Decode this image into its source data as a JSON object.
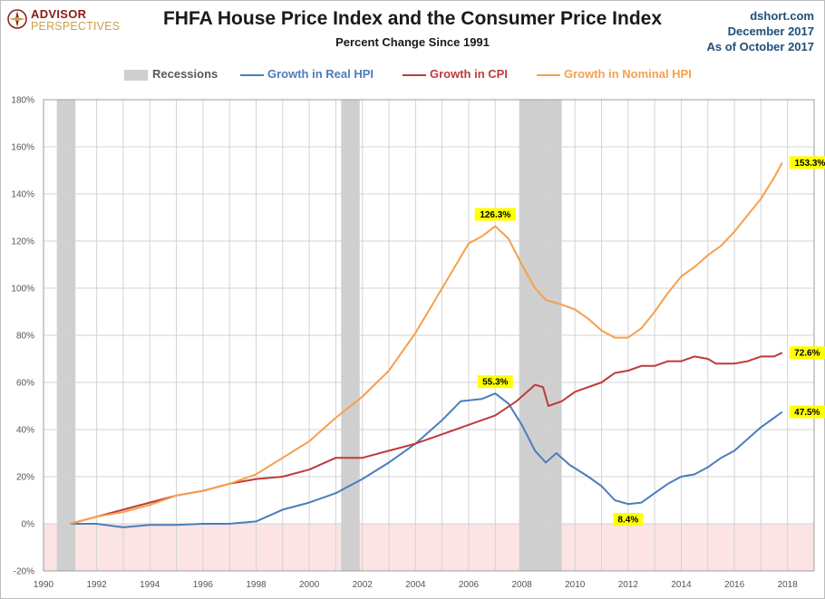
{
  "header": {
    "title": "FHFA House Price Index and the Consumer Price Index",
    "subtitle": "Percent Change Since 1991",
    "source_lines": [
      "dshort.com",
      "December 2017",
      "As of October 2017"
    ]
  },
  "logo": {
    "line1": "ADVISOR",
    "line2": "PERSPECTIVES"
  },
  "legend": {
    "recessions_label": "Recessions",
    "items": [
      {
        "label": "Growth in Real HPI",
        "color": "#4a7ebb"
      },
      {
        "label": "Growth in CPI",
        "color": "#be3b3b"
      },
      {
        "label": "Growth in Nominal HPI",
        "color": "#f5a04e"
      }
    ]
  },
  "colors": {
    "real_hpi": "#4a7ebb",
    "cpi": "#be3b3b",
    "nominal_hpi": "#f5a04e",
    "recession_band": "#cfcfcf",
    "negative_zone": "#fce4e4",
    "callout_bg": "#ffff00",
    "grid": "#d3d3d3"
  },
  "chart_data": {
    "type": "line",
    "title": "FHFA House Price Index and the Consumer Price Index",
    "subtitle": "Percent Change Since 1991",
    "xlim": [
      1990,
      2019
    ],
    "ylim": [
      -20,
      180
    ],
    "x_ticks": [
      "1990",
      "1992",
      "1994",
      "1996",
      "1998",
      "2000",
      "2002",
      "2004",
      "2006",
      "2008",
      "2010",
      "2012",
      "2014",
      "2016",
      "2018"
    ],
    "y_ticks": [
      "-20%",
      "0%",
      "20%",
      "40%",
      "60%",
      "80%",
      "100%",
      "120%",
      "140%",
      "160%",
      "180%"
    ],
    "grid": true,
    "legend_position": "top",
    "recessions": [
      [
        1990.5,
        1991.2
      ],
      [
        2001.2,
        2001.9
      ],
      [
        2007.9,
        2009.5
      ]
    ],
    "series": [
      {
        "name": "Growth in Real HPI",
        "color": "#4a7ebb",
        "points": [
          [
            1991.0,
            0
          ],
          [
            1992.0,
            0
          ],
          [
            1993.0,
            -1.5
          ],
          [
            1994.0,
            -0.5
          ],
          [
            1995.0,
            -0.5
          ],
          [
            1996.0,
            0
          ],
          [
            1997.0,
            0
          ],
          [
            1998.0,
            1
          ],
          [
            1999.0,
            6
          ],
          [
            2000.0,
            9
          ],
          [
            2001.0,
            13
          ],
          [
            2002.0,
            19
          ],
          [
            2003.0,
            26
          ],
          [
            2004.0,
            34
          ],
          [
            2005.0,
            44
          ],
          [
            2005.7,
            52
          ],
          [
            2006.5,
            53
          ],
          [
            2007.0,
            55.3
          ],
          [
            2007.5,
            51
          ],
          [
            2008.0,
            42
          ],
          [
            2008.5,
            31
          ],
          [
            2008.9,
            26
          ],
          [
            2009.3,
            30
          ],
          [
            2009.8,
            25
          ],
          [
            2010.5,
            20
          ],
          [
            2011.0,
            16
          ],
          [
            2011.5,
            10
          ],
          [
            2012.0,
            8.4
          ],
          [
            2012.5,
            9
          ],
          [
            2013.0,
            13
          ],
          [
            2013.5,
            17
          ],
          [
            2014.0,
            20
          ],
          [
            2014.5,
            21
          ],
          [
            2015.0,
            24
          ],
          [
            2015.5,
            28
          ],
          [
            2016.0,
            31
          ],
          [
            2016.5,
            36
          ],
          [
            2017.0,
            41
          ],
          [
            2017.5,
            45
          ],
          [
            2017.8,
            47.5
          ]
        ]
      },
      {
        "name": "Growth in CPI",
        "color": "#be3b3b",
        "points": [
          [
            1991.0,
            0
          ],
          [
            1992.0,
            3
          ],
          [
            1993.0,
            6
          ],
          [
            1994.0,
            9
          ],
          [
            1995.0,
            12
          ],
          [
            1996.0,
            14
          ],
          [
            1997.0,
            17
          ],
          [
            1998.0,
            19
          ],
          [
            1999.0,
            20
          ],
          [
            2000.0,
            23
          ],
          [
            2001.0,
            28
          ],
          [
            2002.0,
            28
          ],
          [
            2003.0,
            31
          ],
          [
            2004.0,
            34
          ],
          [
            2005.0,
            38
          ],
          [
            2006.0,
            42
          ],
          [
            2007.0,
            46
          ],
          [
            2007.8,
            52
          ],
          [
            2008.5,
            59
          ],
          [
            2008.8,
            58
          ],
          [
            2009.0,
            50
          ],
          [
            2009.5,
            52
          ],
          [
            2010.0,
            56
          ],
          [
            2011.0,
            60
          ],
          [
            2011.5,
            64
          ],
          [
            2012.0,
            65
          ],
          [
            2012.5,
            67
          ],
          [
            2013.0,
            67
          ],
          [
            2013.5,
            69
          ],
          [
            2014.0,
            69
          ],
          [
            2014.5,
            71
          ],
          [
            2015.0,
            70
          ],
          [
            2015.3,
            68
          ],
          [
            2016.0,
            68
          ],
          [
            2016.5,
            69
          ],
          [
            2017.0,
            71
          ],
          [
            2017.5,
            71
          ],
          [
            2017.8,
            72.6
          ]
        ]
      },
      {
        "name": "Growth in Nominal HPI",
        "color": "#f5a04e",
        "points": [
          [
            1991.0,
            0
          ],
          [
            1992.0,
            3
          ],
          [
            1993.0,
            5
          ],
          [
            1994.0,
            8
          ],
          [
            1995.0,
            12
          ],
          [
            1996.0,
            14
          ],
          [
            1997.0,
            17
          ],
          [
            1998.0,
            21
          ],
          [
            1999.0,
            28
          ],
          [
            2000.0,
            35
          ],
          [
            2001.0,
            45
          ],
          [
            2002.0,
            54
          ],
          [
            2003.0,
            65
          ],
          [
            2004.0,
            81
          ],
          [
            2005.0,
            100
          ],
          [
            2006.0,
            119
          ],
          [
            2006.5,
            122
          ],
          [
            2007.0,
            126.3
          ],
          [
            2007.5,
            121
          ],
          [
            2008.0,
            110
          ],
          [
            2008.5,
            100
          ],
          [
            2008.9,
            95
          ],
          [
            2009.5,
            93
          ],
          [
            2010.0,
            91
          ],
          [
            2010.5,
            87
          ],
          [
            2011.0,
            82
          ],
          [
            2011.5,
            79
          ],
          [
            2012.0,
            79
          ],
          [
            2012.5,
            83
          ],
          [
            2013.0,
            90
          ],
          [
            2013.5,
            98
          ],
          [
            2014.0,
            105
          ],
          [
            2014.5,
            109
          ],
          [
            2015.0,
            114
          ],
          [
            2015.5,
            118
          ],
          [
            2016.0,
            124
          ],
          [
            2016.5,
            131
          ],
          [
            2017.0,
            138
          ],
          [
            2017.5,
            147
          ],
          [
            2017.8,
            153.3
          ]
        ]
      }
    ],
    "annotations": [
      {
        "text": "126.3%",
        "x": 2007.0,
        "y": 126.3,
        "anchor": "above"
      },
      {
        "text": "55.3%",
        "x": 2007.0,
        "y": 55.3,
        "anchor": "above"
      },
      {
        "text": "8.4%",
        "x": 2012.0,
        "y": 8.4,
        "anchor": "below"
      },
      {
        "text": "153.3%",
        "x": 2017.8,
        "y": 153.3,
        "anchor": "right"
      },
      {
        "text": "72.6%",
        "x": 2017.8,
        "y": 72.6,
        "anchor": "right"
      },
      {
        "text": "47.5%",
        "x": 2017.8,
        "y": 47.5,
        "anchor": "right"
      }
    ]
  }
}
